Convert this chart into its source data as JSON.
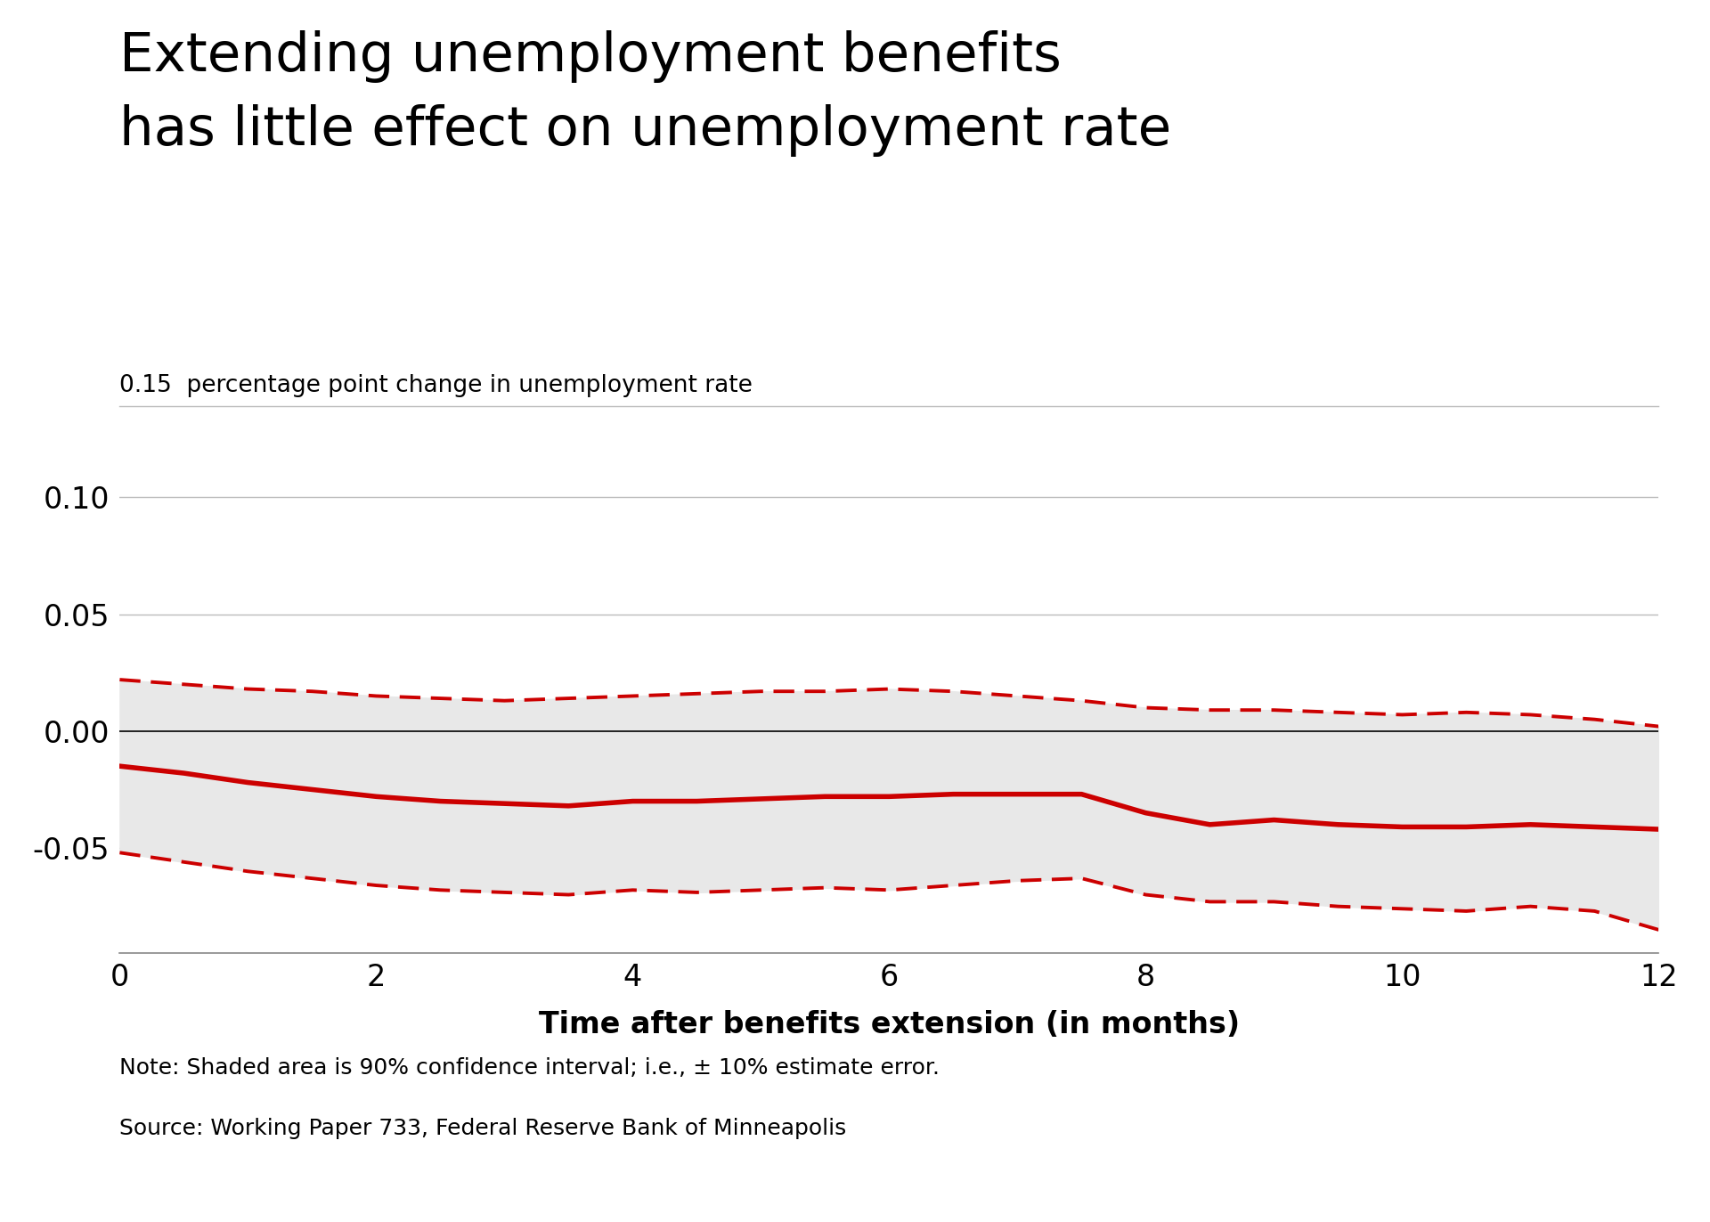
{
  "title_line1": "Extending unemployment benefits",
  "title_line2": "has little effect on unemployment rate",
  "ylabel_text": "percentage point change in unemployment rate",
  "xlabel_text": "Time after benefits extension (in months)",
  "note_line1": "Note: Shaded area is 90% confidence interval; i.e., ± 10% estimate error.",
  "note_line2": "Source: Working Paper 733, Federal Reserve Bank of Minneapolis",
  "xlim": [
    0,
    12
  ],
  "ylim": [
    -0.095,
    0.135
  ],
  "yticks": [
    0.1,
    0.05,
    0.0,
    -0.05
  ],
  "xticks": [
    0,
    2,
    4,
    6,
    8,
    10,
    12
  ],
  "x": [
    0,
    0.5,
    1,
    1.5,
    2,
    2.5,
    3,
    3.5,
    4,
    4.5,
    5,
    5.5,
    6,
    6.5,
    7,
    7.5,
    8,
    8.5,
    9,
    9.5,
    10,
    10.5,
    11,
    11.5,
    12
  ],
  "mean": [
    -0.015,
    -0.018,
    -0.022,
    -0.025,
    -0.028,
    -0.03,
    -0.031,
    -0.032,
    -0.03,
    -0.03,
    -0.029,
    -0.028,
    -0.028,
    -0.027,
    -0.027,
    -0.027,
    -0.035,
    -0.04,
    -0.038,
    -0.04,
    -0.041,
    -0.041,
    -0.04,
    -0.041,
    -0.042
  ],
  "upper": [
    0.022,
    0.02,
    0.018,
    0.017,
    0.015,
    0.014,
    0.013,
    0.014,
    0.015,
    0.016,
    0.017,
    0.017,
    0.018,
    0.017,
    0.015,
    0.013,
    0.01,
    0.009,
    0.009,
    0.008,
    0.007,
    0.008,
    0.007,
    0.005,
    0.002
  ],
  "lower": [
    -0.052,
    -0.056,
    -0.06,
    -0.063,
    -0.066,
    -0.068,
    -0.069,
    -0.07,
    -0.068,
    -0.069,
    -0.068,
    -0.067,
    -0.068,
    -0.066,
    -0.064,
    -0.063,
    -0.07,
    -0.073,
    -0.073,
    -0.075,
    -0.076,
    -0.077,
    -0.075,
    -0.077,
    -0.085
  ],
  "line_color": "#CC0000",
  "fill_color": "#E8E8E8",
  "background_color": "#FFFFFF",
  "grid_color": "#BBBBBB",
  "title_fontsize": 44,
  "ylabel_fontsize": 19,
  "tick_fontsize": 24,
  "note_fontsize": 18,
  "xlabel_fontsize": 24
}
